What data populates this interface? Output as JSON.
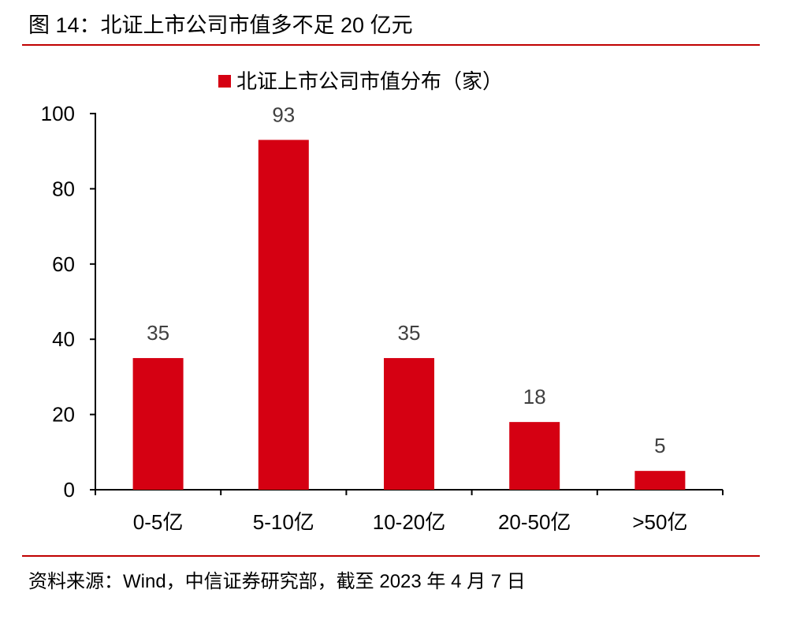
{
  "figure": {
    "title": "图 14：北证上市公司市值多不足 20 亿元",
    "source": "资料来源：Wind，中信证券研究部，截至 2023 年 4 月 7 日"
  },
  "chart_data": {
    "type": "bar",
    "categories": [
      "0-5亿",
      "5-10亿",
      "10-20亿",
      "20-50亿",
      ">50亿"
    ],
    "series": [
      {
        "name": "北证上市公司市值分布（家）",
        "values": [
          35,
          93,
          35,
          18,
          5
        ],
        "color": "#d50012"
      }
    ],
    "ylim": [
      0,
      100
    ],
    "yticks": [
      0,
      20,
      40,
      60,
      80,
      100
    ],
    "xlabel": "",
    "ylabel": "",
    "grid": false,
    "legend_position": "top-center",
    "data_labels": true
  },
  "colors": {
    "accent": "#c00000",
    "bar": "#d50012",
    "axis": "#000000",
    "label": "#404040"
  }
}
